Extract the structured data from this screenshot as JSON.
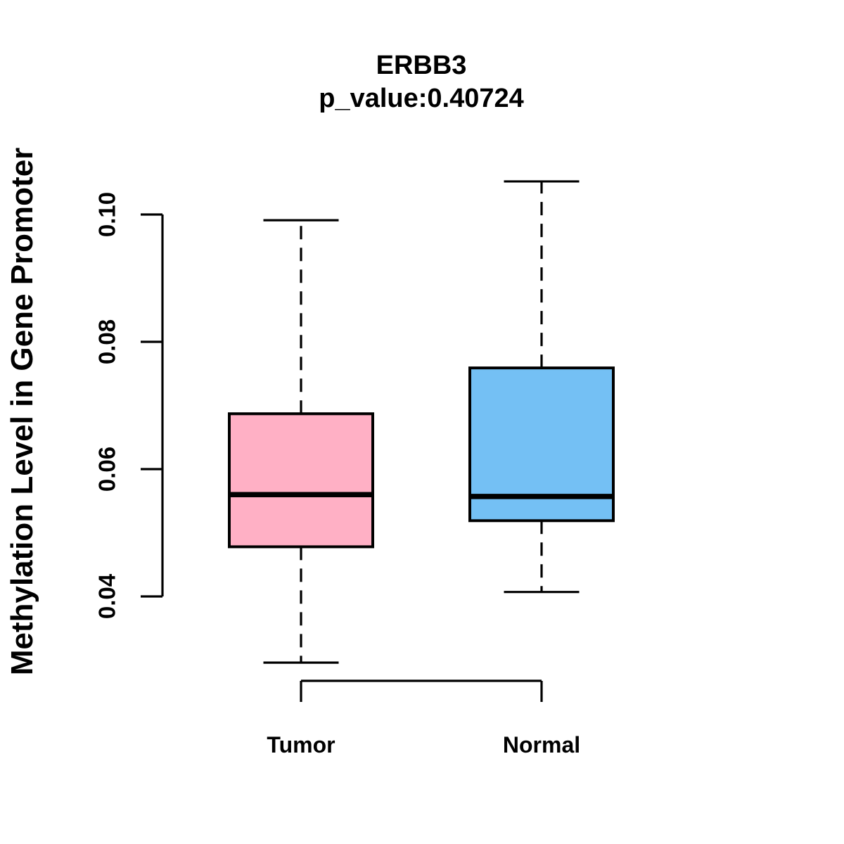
{
  "figure": {
    "background_color": "#FFFFFF",
    "stroke_color": "#000000"
  },
  "chart_data": {
    "type": "boxplot",
    "title": "ERBB3",
    "subtitle": "p_value:0.40724",
    "ylabel": "Methylation Level in Gene Promoter",
    "xlabel": "",
    "grid": false,
    "legend": null,
    "y_axis": {
      "min": 0.04,
      "max": 0.1,
      "ticks": [
        0.04,
        0.06,
        0.08,
        0.1
      ],
      "tick_labels": [
        "0.04",
        "0.06",
        "0.08",
        "0.10"
      ]
    },
    "categories": [
      "Tumor",
      "Normal"
    ],
    "series": [
      {
        "name": "Tumor",
        "fill_color": "#FFB0C5",
        "whisker_low": 0.0296,
        "q1": 0.0478,
        "median": 0.056,
        "q3": 0.0687,
        "whisker_high": 0.0991
      },
      {
        "name": "Normal",
        "fill_color": "#74C0F4",
        "whisker_low": 0.0407,
        "q1": 0.0519,
        "median": 0.0557,
        "q3": 0.0759,
        "whisker_high": 0.1052
      }
    ]
  }
}
